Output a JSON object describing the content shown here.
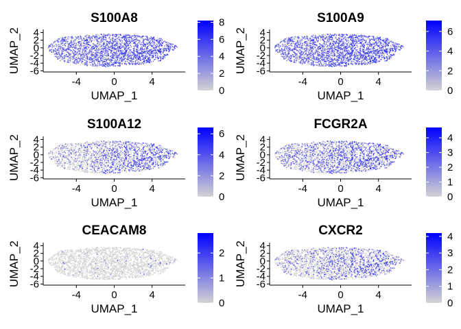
{
  "chart_data": [
    {
      "type": "scatter",
      "title": "S100A8",
      "xlabel": "UMAP_1",
      "ylabel": "UMAP_2",
      "xticks": [
        -4,
        0,
        4
      ],
      "yticks": [
        4,
        2,
        0,
        -2,
        -4,
        -6
      ],
      "xlim": [
        -7.5,
        7.5
      ],
      "ylim": [
        -6.3,
        4.8
      ],
      "color_scale": {
        "low": "#d3d3d3",
        "high": "#0000ff",
        "min": 0,
        "max": 8.2,
        "ticks": [
          0,
          2,
          4,
          6,
          8
        ]
      },
      "expression": {
        "base_level": 0.75,
        "right_boost": 0.15,
        "left_boost": 0
      }
    },
    {
      "type": "scatter",
      "title": "S100A9",
      "xlabel": "UMAP_1",
      "ylabel": "UMAP_2",
      "xticks": [
        -4,
        0,
        4
      ],
      "yticks": [
        4,
        2,
        0,
        -2,
        -4,
        -6
      ],
      "xlim": [
        -7.5,
        7.5
      ],
      "ylim": [
        -6.3,
        4.8
      ],
      "color_scale": {
        "low": "#d3d3d3",
        "high": "#0000ff",
        "min": 0,
        "max": 7.1,
        "ticks": [
          0,
          2,
          4,
          6
        ]
      },
      "expression": {
        "base_level": 0.8,
        "right_boost": 0.1,
        "left_boost": 0
      }
    },
    {
      "type": "scatter",
      "title": "S100A12",
      "xlabel": "UMAP_1",
      "ylabel": "UMAP_2",
      "xticks": [
        -4,
        0,
        4
      ],
      "yticks": [
        4,
        2,
        0,
        -2,
        -4,
        -6
      ],
      "xlim": [
        -7.5,
        7.5
      ],
      "ylim": [
        -6.3,
        4.8
      ],
      "color_scale": {
        "low": "#d3d3d3",
        "high": "#0000ff",
        "min": 0,
        "max": 6.6,
        "ticks": [
          0,
          2,
          4,
          6
        ]
      },
      "expression": {
        "base_level": 0.15,
        "right_boost": 0.55,
        "left_boost": 0
      }
    },
    {
      "type": "scatter",
      "title": "FCGR2A",
      "xlabel": "UMAP_1",
      "ylabel": "UMAP_2",
      "xticks": [
        -4,
        0,
        4
      ],
      "yticks": [
        4,
        2,
        0,
        -2,
        -4,
        -6
      ],
      "xlim": [
        -7.5,
        7.5
      ],
      "ylim": [
        -6.3,
        4.8
      ],
      "color_scale": {
        "low": "#d3d3d3",
        "high": "#0000ff",
        "min": 0,
        "max": 4.7,
        "ticks": [
          0,
          1,
          2,
          3,
          4
        ]
      },
      "expression": {
        "base_level": 0.35,
        "right_boost": 0.35,
        "left_boost": 0
      }
    },
    {
      "type": "scatter",
      "title": "CEACAM8",
      "xlabel": "UMAP_1",
      "ylabel": "UMAP_2",
      "xticks": [
        -4,
        0,
        4
      ],
      "yticks": [
        4,
        2,
        0,
        -2,
        -4,
        -6
      ],
      "xlim": [
        -7.5,
        7.5
      ],
      "ylim": [
        -6.3,
        4.8
      ],
      "color_scale": {
        "low": "#d3d3d3",
        "high": "#0000ff",
        "min": 0,
        "max": 2.8,
        "ticks": [
          0,
          1,
          2
        ]
      },
      "expression": {
        "base_level": 0.01,
        "right_boost": 0.02,
        "left_boost": 0
      }
    },
    {
      "type": "scatter",
      "title": "CXCR2",
      "xlabel": "UMAP_1",
      "ylabel": "UMAP_2",
      "xticks": [
        -4,
        0,
        4
      ],
      "yticks": [
        4,
        2,
        0,
        -2,
        -4,
        -6
      ],
      "xlim": [
        -7.5,
        7.5
      ],
      "ylim": [
        -6.3,
        4.8
      ],
      "color_scale": {
        "low": "#d3d3d3",
        "high": "#0000ff",
        "min": 0,
        "max": 4.2,
        "ticks": [
          0,
          1,
          2,
          3,
          4
        ]
      },
      "expression": {
        "base_level": 0.2,
        "right_boost": 0.3,
        "left_boost": 0
      }
    }
  ]
}
